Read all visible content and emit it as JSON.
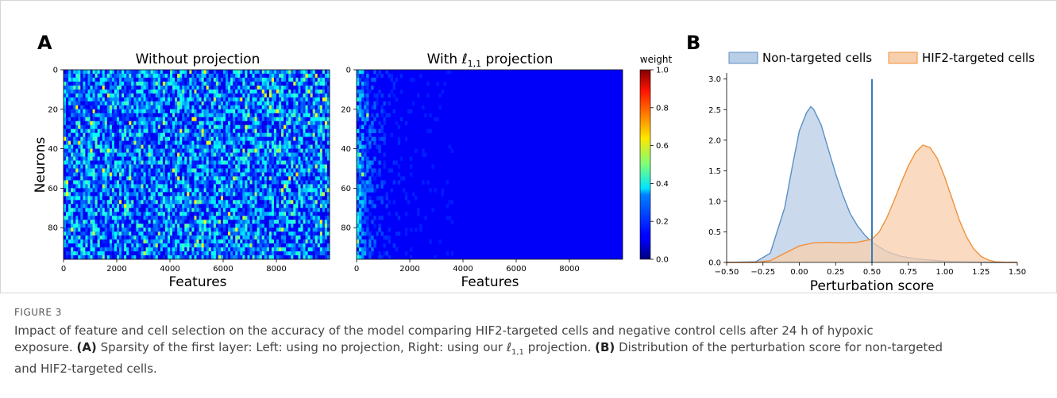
{
  "figure": {
    "panel_a_letter": "A",
    "panel_b_letter": "B"
  },
  "chart_data": [
    {
      "type": "heatmap",
      "title": "Without projection",
      "xlabel": "Features",
      "ylabel": "Neurons",
      "x_ticks": [
        0,
        2000,
        4000,
        6000,
        8000
      ],
      "y_ticks": [
        0,
        20,
        40,
        60,
        80
      ],
      "xlim": [
        0,
        10000
      ],
      "ylim": [
        0,
        96
      ],
      "colormap": "jet",
      "description_pattern": "dense noise, values mostly 0.1-0.4 across all features"
    },
    {
      "type": "heatmap",
      "title_prefix": "With ",
      "title_symbol": "ℓ",
      "title_subscript": "1,1",
      "title_suffix": " projection",
      "xlabel": "Features",
      "x_ticks": [
        0,
        2000,
        4000,
        6000,
        8000
      ],
      "y_ticks": [
        0,
        20,
        40,
        60,
        80
      ],
      "xlim": [
        0,
        10000
      ],
      "ylim": [
        0,
        96
      ],
      "colormap": "jet",
      "colorbar_label": "weight",
      "colorbar_ticks": [
        "0.0",
        "0.2",
        "0.4",
        "0.6",
        "0.8",
        "1.0"
      ],
      "clim": [
        0,
        1
      ]
    },
    {
      "type": "area",
      "xlabel": "Perturbation score",
      "x_ticks": [
        "−0.50",
        "−0.25",
        "0.00",
        "0.25",
        "0.50",
        "0.75",
        "1.00",
        "1.25",
        "1.50"
      ],
      "y_ticks": [
        "0.0",
        "0.5",
        "1.0",
        "1.5",
        "2.0",
        "2.5",
        "3.0"
      ],
      "xlim": [
        -0.5,
        1.5
      ],
      "ylim": [
        0,
        3.1
      ],
      "vline": {
        "x": 0.5,
        "ymax": 3.0,
        "color": "#3a7ab5"
      },
      "series": [
        {
          "name": "Non-targeted cells",
          "color": "#5b8fc7",
          "fill": "#b8cde6",
          "x": [
            -0.5,
            -0.3,
            -0.2,
            -0.1,
            -0.05,
            0.0,
            0.05,
            0.08,
            0.1,
            0.15,
            0.2,
            0.25,
            0.3,
            0.35,
            0.4,
            0.45,
            0.5,
            0.6,
            0.7,
            0.8,
            0.9,
            1.0,
            1.1,
            1.2,
            1.3,
            1.5
          ],
          "y": [
            0.0,
            0.01,
            0.15,
            0.9,
            1.55,
            2.15,
            2.45,
            2.55,
            2.5,
            2.25,
            1.85,
            1.45,
            1.1,
            0.8,
            0.6,
            0.45,
            0.33,
            0.18,
            0.1,
            0.06,
            0.04,
            0.02,
            0.01,
            0.005,
            0.0,
            0.0
          ]
        },
        {
          "name": "HIF2-targeted cells",
          "color": "#f0913a",
          "fill": "#f8cfae",
          "x": [
            -0.5,
            -0.3,
            -0.2,
            -0.1,
            0.0,
            0.1,
            0.2,
            0.3,
            0.4,
            0.5,
            0.55,
            0.6,
            0.65,
            0.7,
            0.75,
            0.8,
            0.85,
            0.9,
            0.95,
            1.0,
            1.05,
            1.1,
            1.15,
            1.2,
            1.25,
            1.3,
            1.35,
            1.45,
            1.5
          ],
          "y": [
            0.0,
            0.0,
            0.03,
            0.15,
            0.27,
            0.32,
            0.33,
            0.32,
            0.33,
            0.38,
            0.5,
            0.72,
            1.0,
            1.3,
            1.58,
            1.8,
            1.92,
            1.88,
            1.7,
            1.4,
            1.05,
            0.7,
            0.42,
            0.22,
            0.1,
            0.04,
            0.01,
            0.0,
            0.0
          ]
        }
      ]
    }
  ],
  "caption": {
    "label": "FIGURE 3",
    "line1": "Impact of feature and cell selection on the accuracy of the model comparing HIF2-targeted cells and negative control cells after 24 h of hypoxic",
    "line2_pre": "exposure. ",
    "line2_a": "(A)",
    "line2_mid": " Sparsity of the first layer: Left: using no projection, Right: using our ",
    "line2_sym": "ℓ",
    "line2_sub": "1,1",
    "line2_post": " projection. ",
    "line2_b": "(B)",
    "line2_end": " Distribution of the perturbation score for non-targeted",
    "line3": "and HIF2-targeted cells."
  }
}
